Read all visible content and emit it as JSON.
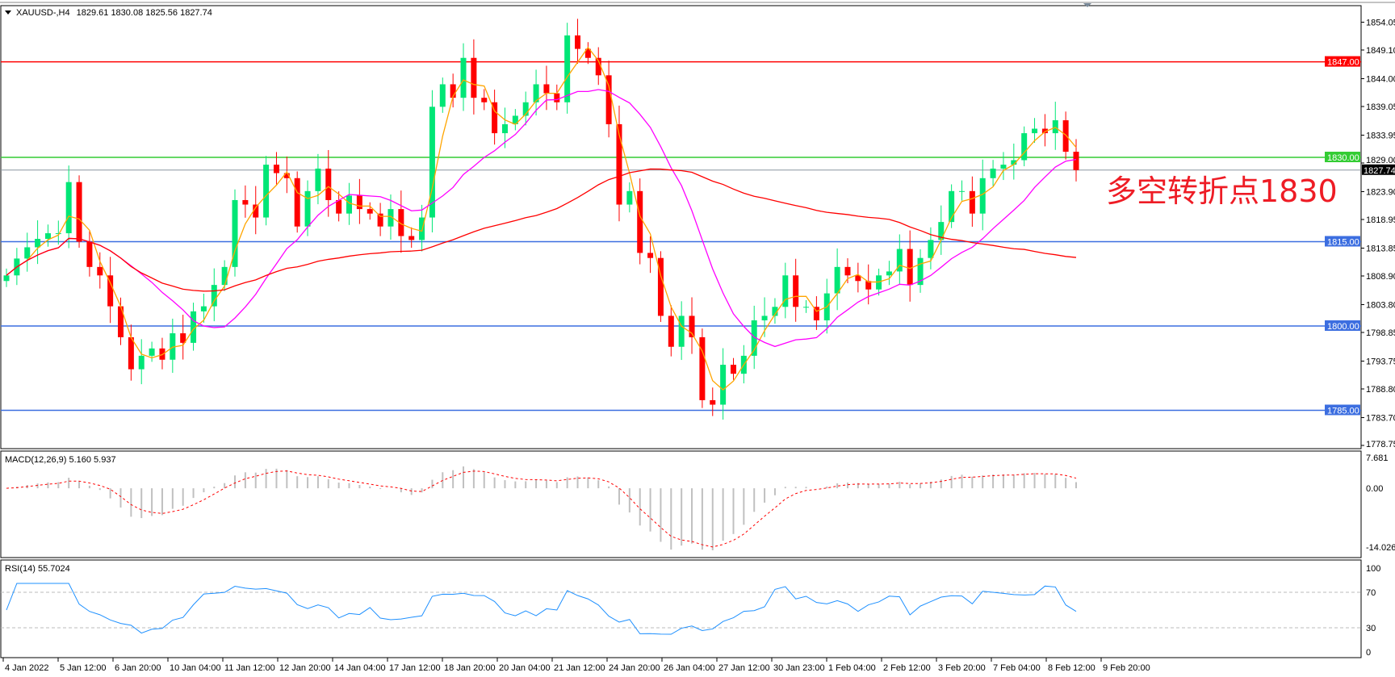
{
  "header": {
    "symbol": "XAUUSD-,H4",
    "ohlc": "1829.61 1830.08 1825.56 1827.74"
  },
  "annotation": "多空转折点1830",
  "colors": {
    "bull": "#00e676",
    "bear": "#ff0000",
    "ma_fast": "#ffa500",
    "ma_mid": "#ff00ff",
    "ma_slow": "#ff0000",
    "resistance": "#ff0000",
    "pivot": "#33cc33",
    "support": "#3c6ee0",
    "current": "#8a96a0",
    "rsi": "#1e90ff",
    "macd_hist": "#c0c0c0",
    "macd_signal": "#ff0000"
  },
  "price_axis": {
    "min": 1778.75,
    "max": 1854.05,
    "ticks": [
      "1854.05",
      "1849.10",
      "1844.00",
      "1839.05",
      "1833.95",
      "1829.00",
      "1823.90",
      "1818.95",
      "1813.85",
      "1808.90",
      "1803.80",
      "1798.85",
      "1793.75",
      "1788.80",
      "1783.70",
      "1778.75"
    ]
  },
  "levels": [
    {
      "price": 1847.0,
      "label": "1847.00",
      "kind": "resistance"
    },
    {
      "price": 1830.0,
      "label": "1830.00",
      "kind": "pivot"
    },
    {
      "price": 1815.0,
      "label": "1815.00",
      "kind": "support"
    },
    {
      "price": 1800.0,
      "label": "1800.00",
      "kind": "support"
    },
    {
      "price": 1785.0,
      "label": "1785.00",
      "kind": "support"
    }
  ],
  "current_price": {
    "price": 1827.74,
    "label": "1827.74"
  },
  "closes": [
    1809,
    1812,
    1814,
    1815.5,
    1816.5,
    1816.5,
    1825.6,
    1815,
    1810.5,
    1809,
    1803.5,
    1798,
    1792.3,
    1794.7,
    1796,
    1794,
    1798.7,
    1797,
    1802.6,
    1803.5,
    1807.3,
    1810.5,
    1822.4,
    1821.6,
    1819.3,
    1828.7,
    1827.2,
    1826.3,
    1817.7,
    1824,
    1828,
    1822.4,
    1820,
    1823.2,
    1820.8,
    1820,
    1817.7,
    1820.8,
    1816,
    1815.3,
    1819.3,
    1839,
    1843,
    1840.6,
    1847.7,
    1840.6,
    1839.8,
    1834.3,
    1835.9,
    1837.4,
    1839.8,
    1843,
    1841.4,
    1839.8,
    1851.7,
    1849.3,
    1847.7,
    1844.6,
    1835.9,
    1821.6,
    1824,
    1813,
    1812.1,
    1801.8,
    1796.3,
    1801.8,
    1798,
    1786.8,
    1786,
    1793.1,
    1791.5,
    1794.7,
    1801,
    1801.8,
    1803.4,
    1809,
    1803.4,
    1803.4,
    1801,
    1805.8,
    1810.5,
    1809,
    1808,
    1806.5,
    1809,
    1809.7,
    1813.7,
    1807.3,
    1812.1,
    1815.3,
    1818.5,
    1824,
    1824,
    1820,
    1826.3,
    1828,
    1828.7,
    1829.5,
    1834.3,
    1835.1,
    1834.3,
    1836.6,
    1831,
    1827.74
  ],
  "macd": {
    "label": "MACD(12,26,9) 5.160 5.937",
    "ticks": [
      "7.681",
      "0.00",
      "-14.026"
    ],
    "max": 7.681,
    "min": -14.026
  },
  "rsi": {
    "label": "RSI(14) 55.7024",
    "ticks": [
      "100",
      "70",
      "30",
      "0"
    ]
  },
  "time_axis": [
    "4 Jan 2022",
    "5 Jan 12:00",
    "6 Jan 20:00",
    "10 Jan 04:00",
    "11 Jan 12:00",
    "12 Jan 20:00",
    "14 Jan 04:00",
    "17 Jan 12:00",
    "18 Jan 20:00",
    "20 Jan 04:00",
    "21 Jan 12:00",
    "24 Jan 20:00",
    "26 Jan 04:00",
    "27 Jan 12:00",
    "30 Jan 23:00",
    "1 Feb 04:00",
    "2 Feb 12:00",
    "3 Feb 20:00",
    "7 Feb 04:00",
    "8 Feb 12:00",
    "9 Feb 20:00"
  ]
}
